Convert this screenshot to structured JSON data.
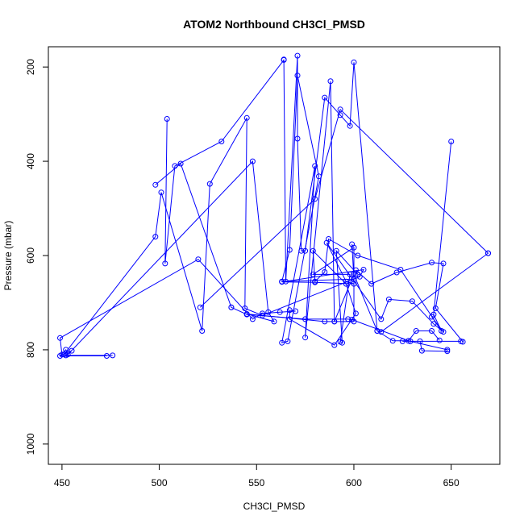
{
  "chart_data": {
    "type": "line",
    "title": "ATOM2 Northbound CH3Cl_PMSD",
    "xlabel": "CH3Cl_PMSD",
    "ylabel": "Pressure (mbar)",
    "xlim": [
      443,
      675
    ],
    "ylim": [
      1043,
      157
    ],
    "y_reversed": true,
    "x_ticks": [
      450,
      500,
      550,
      600,
      650
    ],
    "y_ticks": [
      200,
      400,
      600,
      800,
      1000
    ],
    "grid": false,
    "legend": "none",
    "color": "#0000ff",
    "series": [
      {
        "x": [
          476,
          452,
          455,
          450,
          449,
          520,
          548,
          553,
          562,
          570,
          567,
          567,
          590,
          601,
          596,
          579,
          580,
          585,
          587,
          602,
          624,
          645,
          641,
          650
        ],
        "y": [
          812,
          812,
          802,
          810,
          775,
          608,
          735,
          723,
          720,
          718,
          716,
          735,
          790,
          723,
          660,
          590,
          655,
          635,
          565,
          600,
          630,
          760,
          725,
          358
        ]
      },
      {
        "x": [
          473,
          449,
          452,
          453,
          548,
          556,
          559,
          545,
          585,
          590,
          600,
          600,
          579,
          598,
          593,
          594,
          591,
          602,
          601,
          609,
          622,
          640,
          646,
          642,
          656
        ],
        "y": [
          813,
          813,
          800,
          810,
          400,
          720,
          740,
          724,
          740,
          740,
          740,
          583,
          640,
          640,
          783,
          785,
          590,
          640,
          631,
          660,
          636,
          615,
          617,
          712,
          783
        ]
      },
      {
        "x": [
          451,
          498,
          501,
          522,
          526,
          545,
          544,
          553,
          603,
          605,
          563,
          580,
          600,
          596,
          586,
          614,
          618,
          630,
          641,
          646,
          640
        ],
        "y": [
          810,
          560,
          466,
          760,
          448,
          308,
          712,
          727,
          645,
          630,
          656,
          657,
          660,
          655,
          573,
          735,
          693,
          697,
          745,
          762,
          730
        ]
      },
      {
        "x": [
          498,
          511,
          537,
          537,
          545,
          575,
          597,
          599,
          629,
          648,
          648,
          635,
          634,
          625,
          655
        ],
        "y": [
          450,
          405,
          710,
          710,
          725,
          735,
          735,
          736,
          782,
          800,
          803,
          802,
          782,
          782,
          782
        ]
      },
      {
        "x": [
          504,
          503,
          508,
          532,
          564,
          564,
          565,
          571,
          571,
          573,
          575,
          585,
          593,
          598,
          600,
          612,
          620,
          628,
          632,
          640,
          644
        ],
        "y": [
          310,
          617,
          410,
          358,
          185,
          184,
          655,
          176,
          352,
          590,
          590,
          265,
          302,
          325,
          190,
          760,
          781,
          781,
          760,
          760,
          780
        ]
      },
      {
        "x": [
          521,
          580,
          593,
          669,
          669,
          614,
          612,
          600,
          590,
          588,
          575,
          580,
          563,
          566,
          582,
          571,
          567,
          563,
          600,
          599
        ],
        "y": [
          710,
          480,
          290,
          595,
          595,
          762,
          760,
          640,
          740,
          230,
          774,
          410,
          785,
          782,
          432,
          218,
          588,
          655,
          650,
          576
        ]
      }
    ]
  }
}
